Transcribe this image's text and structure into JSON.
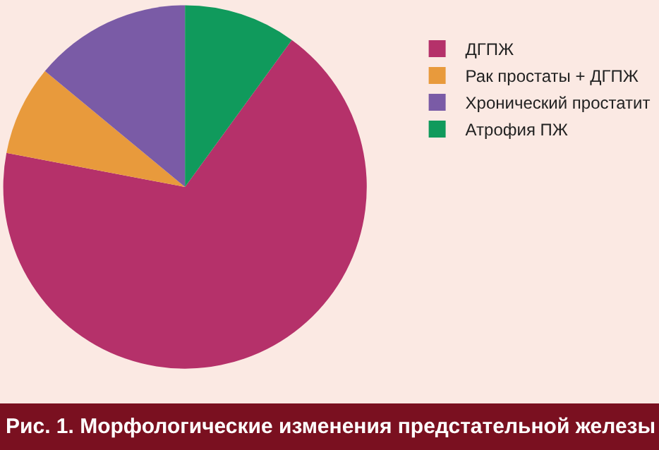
{
  "chart_data": {
    "type": "pie",
    "title": "Рис. 1. Морфологические изменения предстательной железы",
    "categories": [
      "ДГПЖ",
      "Рак простаты + ДГПЖ",
      "Хронический простатит",
      "Атрофия ПЖ"
    ],
    "values": [
      68,
      8,
      14,
      10
    ],
    "colors": [
      "#b5316a",
      "#e89a3c",
      "#7a5ba6",
      "#109a5c"
    ],
    "legend": "right"
  }
}
